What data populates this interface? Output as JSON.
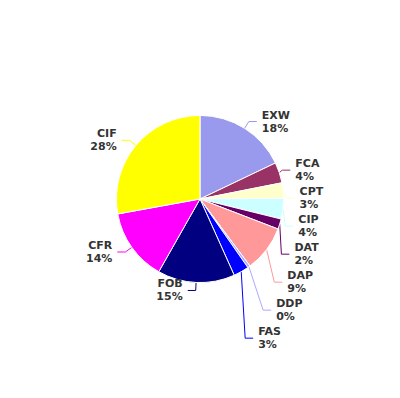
{
  "chart_data": {
    "type": "pie",
    "categories": [
      "EXW",
      "FCA",
      "CPT",
      "CIP",
      "DAT",
      "DAP",
      "DDP",
      "FAS",
      "FOB",
      "CFR",
      "CIF"
    ],
    "values": [
      18,
      4,
      3,
      4,
      2,
      9,
      0.5,
      3,
      15,
      14,
      28
    ],
    "value_labels": [
      "18%",
      "4%",
      "3%",
      "4%",
      "2%",
      "9%",
      "0%",
      "3%",
      "15%",
      "14%",
      "28%"
    ],
    "colors": [
      "#9999EE",
      "#993366",
      "#FFFFCC",
      "#CCFFFF",
      "#660066",
      "#FF9999",
      "#AAAAFF",
      "#0000FF",
      "#000080",
      "#FF00FF",
      "#FFFF00"
    ],
    "data_labels": true
  }
}
